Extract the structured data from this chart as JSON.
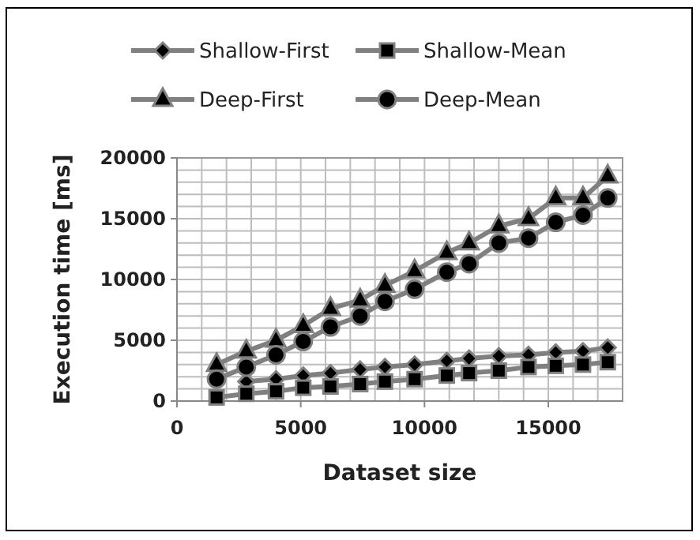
{
  "chart_data": {
    "type": "line",
    "xlabel": "Dataset size",
    "ylabel": "Execution time [ms]",
    "x": [
      1600,
      2800,
      4000,
      5100,
      6200,
      7400,
      8400,
      9600,
      10900,
      11800,
      13000,
      14200,
      15300,
      16400,
      17400
    ],
    "series": [
      {
        "name": "Shallow-First",
        "color": "#808080",
        "marker": "diamond",
        "values": [
          null,
          1600,
          1800,
          2100,
          2300,
          2600,
          2800,
          3000,
          3300,
          3500,
          3700,
          3800,
          4000,
          4100,
          4400
        ]
      },
      {
        "name": "Shallow-Mean",
        "color": "#808080",
        "marker": "square",
        "values": [
          300,
          600,
          800,
          1100,
          1200,
          1400,
          1600,
          1800,
          2100,
          2300,
          2500,
          2800,
          2900,
          3000,
          3200
        ]
      },
      {
        "name": "Deep-First",
        "color": "#808080",
        "marker": "triangle",
        "values": [
          3000,
          4100,
          5000,
          6200,
          7600,
          8300,
          9500,
          10700,
          12200,
          13000,
          14400,
          15000,
          16700,
          16700,
          18500
        ]
      },
      {
        "name": "Deep-Mean",
        "color": "#808080",
        "marker": "circle",
        "values": [
          1800,
          2800,
          3800,
          4900,
          6100,
          7000,
          8200,
          9200,
          10600,
          11300,
          13000,
          13400,
          14700,
          15300,
          16700
        ]
      }
    ],
    "xlim": [
      0,
      18000
    ],
    "xticks": [
      0,
      {
        "value": 1000,
        "label": null
      },
      {
        "value": 2000,
        "label": null
      },
      {
        "value": 3000,
        "label": null
      },
      {
        "value": 4000,
        "label": null
      },
      5000,
      {
        "value": 6000,
        "label": null
      },
      {
        "value": 7000,
        "label": null
      },
      {
        "value": 8000,
        "label": null
      },
      {
        "value": 9000,
        "label": null
      },
      10000,
      {
        "value": 11000,
        "label": null
      },
      {
        "value": 12000,
        "label": null
      },
      {
        "value": 13000,
        "label": null
      },
      {
        "value": 14000,
        "label": null
      },
      15000,
      {
        "value": 16000,
        "label": null
      },
      {
        "value": 17000,
        "label": null
      },
      {
        "value": 18000,
        "label": null
      }
    ],
    "ylim": [
      0,
      20000
    ],
    "yticks": [
      0,
      {
        "value": 1000,
        "label": null
      },
      {
        "value": 2000,
        "label": null
      },
      {
        "value": 3000,
        "label": null
      },
      {
        "value": 4000,
        "label": null
      },
      5000,
      {
        "value": 6000,
        "label": null
      },
      {
        "value": 7000,
        "label": null
      },
      {
        "value": 8000,
        "label": null
      },
      {
        "value": 9000,
        "label": null
      },
      10000,
      {
        "value": 11000,
        "label": null
      },
      {
        "value": 12000,
        "label": null
      },
      {
        "value": 13000,
        "label": null
      },
      {
        "value": 14000,
        "label": null
      },
      15000,
      {
        "value": 16000,
        "label": null
      },
      {
        "value": 17000,
        "label": null
      },
      {
        "value": 18000,
        "label": null
      },
      {
        "value": 19000,
        "label": null
      },
      20000
    ],
    "grid": true,
    "legend": "top",
    "line_style": "solid"
  }
}
